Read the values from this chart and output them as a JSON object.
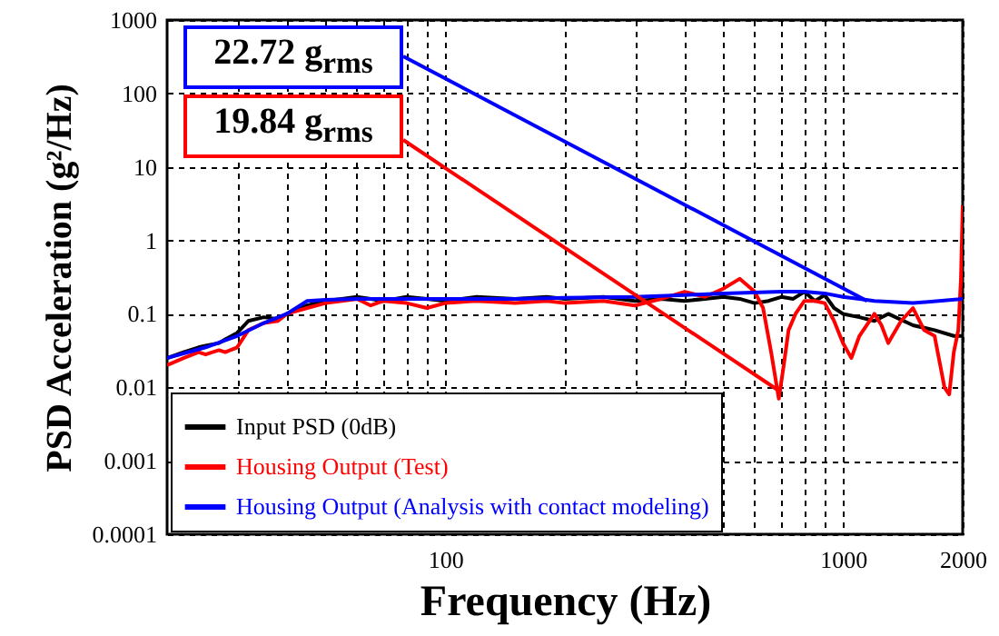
{
  "chart_data": {
    "type": "line",
    "xlabel": "Frequency (Hz)",
    "ylabel": "PSD Acceleration (g²/Hz)",
    "log": "xy",
    "grid": true,
    "legend": "bottom left",
    "line_style": "solid",
    "xlim": [
      20,
      2000
    ],
    "ylim": [
      0.0001,
      1000
    ],
    "xticks": [
      {
        "value": 30,
        "label": null
      },
      {
        "value": 40,
        "label": null
      },
      {
        "value": 50,
        "label": null
      },
      {
        "value": 60,
        "label": null
      },
      {
        "value": 70,
        "label": null
      },
      {
        "value": 80,
        "label": null
      },
      {
        "value": 90,
        "label": null
      },
      100,
      {
        "value": 200,
        "label": null
      },
      {
        "value": 300,
        "label": null
      },
      {
        "value": 400,
        "label": null
      },
      {
        "value": 500,
        "label": null
      },
      {
        "value": 600,
        "label": null
      },
      {
        "value": 700,
        "label": null
      },
      {
        "value": 800,
        "label": null
      },
      {
        "value": 900,
        "label": null
      },
      1000,
      2000
    ],
    "yticks": [
      0.0001,
      0.001,
      0.01,
      0.1,
      1,
      10,
      100,
      1000
    ],
    "annotations": [
      {
        "text": "22.72 g$_{rms}$",
        "x": 1150,
        "y": 0.15
      },
      {
        "text": "19.84 g$_{rms}$",
        "x": 690,
        "y": 0.009
      }
    ],
    "series": [
      {
        "name": "Input PSD (0dB)",
        "color": "#000000",
        "x": [
          20,
          22,
          24,
          25,
          27,
          28,
          30,
          32,
          35,
          38,
          40,
          45,
          50,
          55,
          60,
          65,
          70,
          80,
          90,
          100,
          120,
          150,
          180,
          200,
          250,
          300,
          350,
          400,
          450,
          500,
          550,
          600,
          650,
          700,
          750,
          800,
          850,
          900,
          950,
          1000,
          1100,
          1200,
          1300,
          1500,
          1700,
          1900,
          2000
        ],
        "values": [
          0.025,
          0.03,
          0.035,
          0.037,
          0.04,
          0.045,
          0.055,
          0.08,
          0.09,
          0.085,
          0.1,
          0.13,
          0.15,
          0.16,
          0.17,
          0.16,
          0.15,
          0.17,
          0.16,
          0.15,
          0.17,
          0.16,
          0.17,
          0.16,
          0.17,
          0.15,
          0.16,
          0.15,
          0.16,
          0.17,
          0.16,
          0.14,
          0.15,
          0.17,
          0.16,
          0.2,
          0.15,
          0.18,
          0.12,
          0.1,
          0.09,
          0.08,
          0.1,
          0.07,
          0.06,
          0.05,
          0.05
        ]
      },
      {
        "name": "Housing Output (Test)",
        "color": "#ff0000",
        "x": [
          20,
          22,
          24,
          25,
          26,
          27,
          28,
          30,
          32,
          35,
          38,
          40,
          45,
          50,
          55,
          60,
          65,
          70,
          80,
          90,
          100,
          120,
          150,
          180,
          200,
          250,
          300,
          350,
          400,
          450,
          500,
          550,
          600,
          630,
          660,
          690,
          710,
          730,
          760,
          800,
          850,
          900,
          950,
          1000,
          1050,
          1100,
          1200,
          1250,
          1300,
          1400,
          1500,
          1600,
          1700,
          1800,
          1850,
          1900,
          1950,
          1980,
          2000
        ],
        "values": [
          0.02,
          0.025,
          0.03,
          0.028,
          0.03,
          0.032,
          0.03,
          0.035,
          0.06,
          0.075,
          0.08,
          0.1,
          0.12,
          0.14,
          0.15,
          0.16,
          0.13,
          0.15,
          0.14,
          0.12,
          0.14,
          0.15,
          0.14,
          0.15,
          0.14,
          0.15,
          0.13,
          0.16,
          0.2,
          0.17,
          0.22,
          0.3,
          0.2,
          0.12,
          0.03,
          0.007,
          0.02,
          0.06,
          0.1,
          0.15,
          0.15,
          0.14,
          0.08,
          0.04,
          0.025,
          0.05,
          0.1,
          0.07,
          0.04,
          0.08,
          0.12,
          0.06,
          0.05,
          0.01,
          0.008,
          0.03,
          0.06,
          0.3,
          3
        ]
      },
      {
        "name": "Housing Output (Analysis with contact modeling)",
        "color": "#0000ff",
        "x": [
          20,
          25,
          30,
          35,
          40,
          45,
          50,
          60,
          80,
          100,
          150,
          200,
          300,
          400,
          500,
          700,
          800,
          900,
          1000,
          1100,
          1200,
          1500,
          2000
        ],
        "values": [
          0.025,
          0.035,
          0.05,
          0.075,
          0.1,
          0.15,
          0.155,
          0.16,
          0.16,
          0.16,
          0.16,
          0.165,
          0.17,
          0.18,
          0.19,
          0.2,
          0.2,
          0.19,
          0.17,
          0.16,
          0.15,
          0.14,
          0.16
        ]
      }
    ]
  }
}
